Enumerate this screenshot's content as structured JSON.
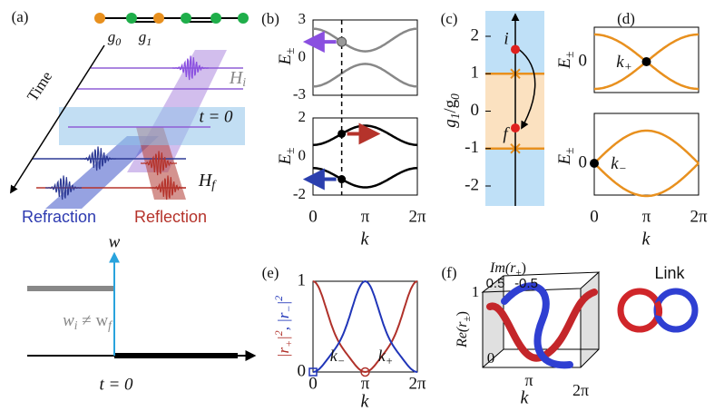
{
  "panels": {
    "a": {
      "label": "(a)",
      "g0": {
        "main": "g",
        "sub": "0"
      },
      "g1": {
        "main": "g",
        "sub": "1"
      },
      "time": "Time",
      "h_i": {
        "main": "H",
        "sub": "i"
      },
      "t0": "t = 0",
      "h_f": {
        "main": "H",
        "sub": "f"
      },
      "refraction": "Refraction",
      "reflection": "Reflection"
    },
    "a_lower": {
      "w": "w",
      "inequality": [
        {
          "main": "w",
          "sub": "i"
        },
        {
          "main": " ≠ "
        },
        {
          "main": "w",
          "sub": "f"
        }
      ],
      "t0": "t = 0"
    },
    "b": {
      "label": "(b)",
      "ylabel": {
        "main": "E",
        "sub": "±"
      },
      "top_yticks": [
        3,
        0,
        -3
      ],
      "bottom_yticks": [
        2,
        0,
        -2
      ],
      "xticks": [
        "0",
        "π",
        "2π"
      ],
      "xlabel": "k"
    },
    "c": {
      "label": "(c)",
      "ylabel": [
        {
          "main": "g",
          "sub": "1"
        },
        {
          "main": "/"
        },
        {
          "main": "g",
          "sub": "0"
        }
      ],
      "yticks": [
        2,
        1,
        0,
        -1,
        -2
      ],
      "i": "i",
      "f": "f"
    },
    "d": {
      "label": "(d)",
      "ylabel": {
        "main": "E",
        "sub": "±"
      },
      "top_ytick": "0",
      "bottom_ytick": "0",
      "k_plus": {
        "main": "k",
        "sub": "+"
      },
      "k_minus": {
        "main": "k",
        "sub": "−"
      },
      "xticks": [
        "0",
        "π",
        "2π"
      ],
      "xlabel": "k"
    },
    "e": {
      "label": "(e)",
      "ylabel": [
        {
          "main": "|r",
          "sub": "+"
        },
        {
          "main": "|",
          "sup": "2"
        },
        {
          "main": ", |r",
          "sub": "−"
        },
        {
          "main": "|",
          "sup": "2"
        }
      ],
      "yticks": [
        0,
        1
      ],
      "k_minus": {
        "main": "k",
        "sub": "−"
      },
      "k_plus": {
        "main": "k",
        "sub": "+"
      },
      "xticks": [
        "0",
        "π",
        "2π"
      ],
      "xlabel": "k"
    },
    "f": {
      "label": "(f)",
      "zlabel": [
        {
          "main": "Im(r",
          "sub": "±"
        },
        {
          "main": ")"
        }
      ],
      "zticks": [
        "0.5",
        "-0.5"
      ],
      "ylabel": [
        {
          "main": "Re(r",
          "sub": "±"
        },
        {
          "main": ")"
        }
      ],
      "yticks": [
        "1",
        "0"
      ],
      "xticks": [
        "π",
        "2π"
      ],
      "xlabel": "k",
      "link": "Link"
    }
  }
}
